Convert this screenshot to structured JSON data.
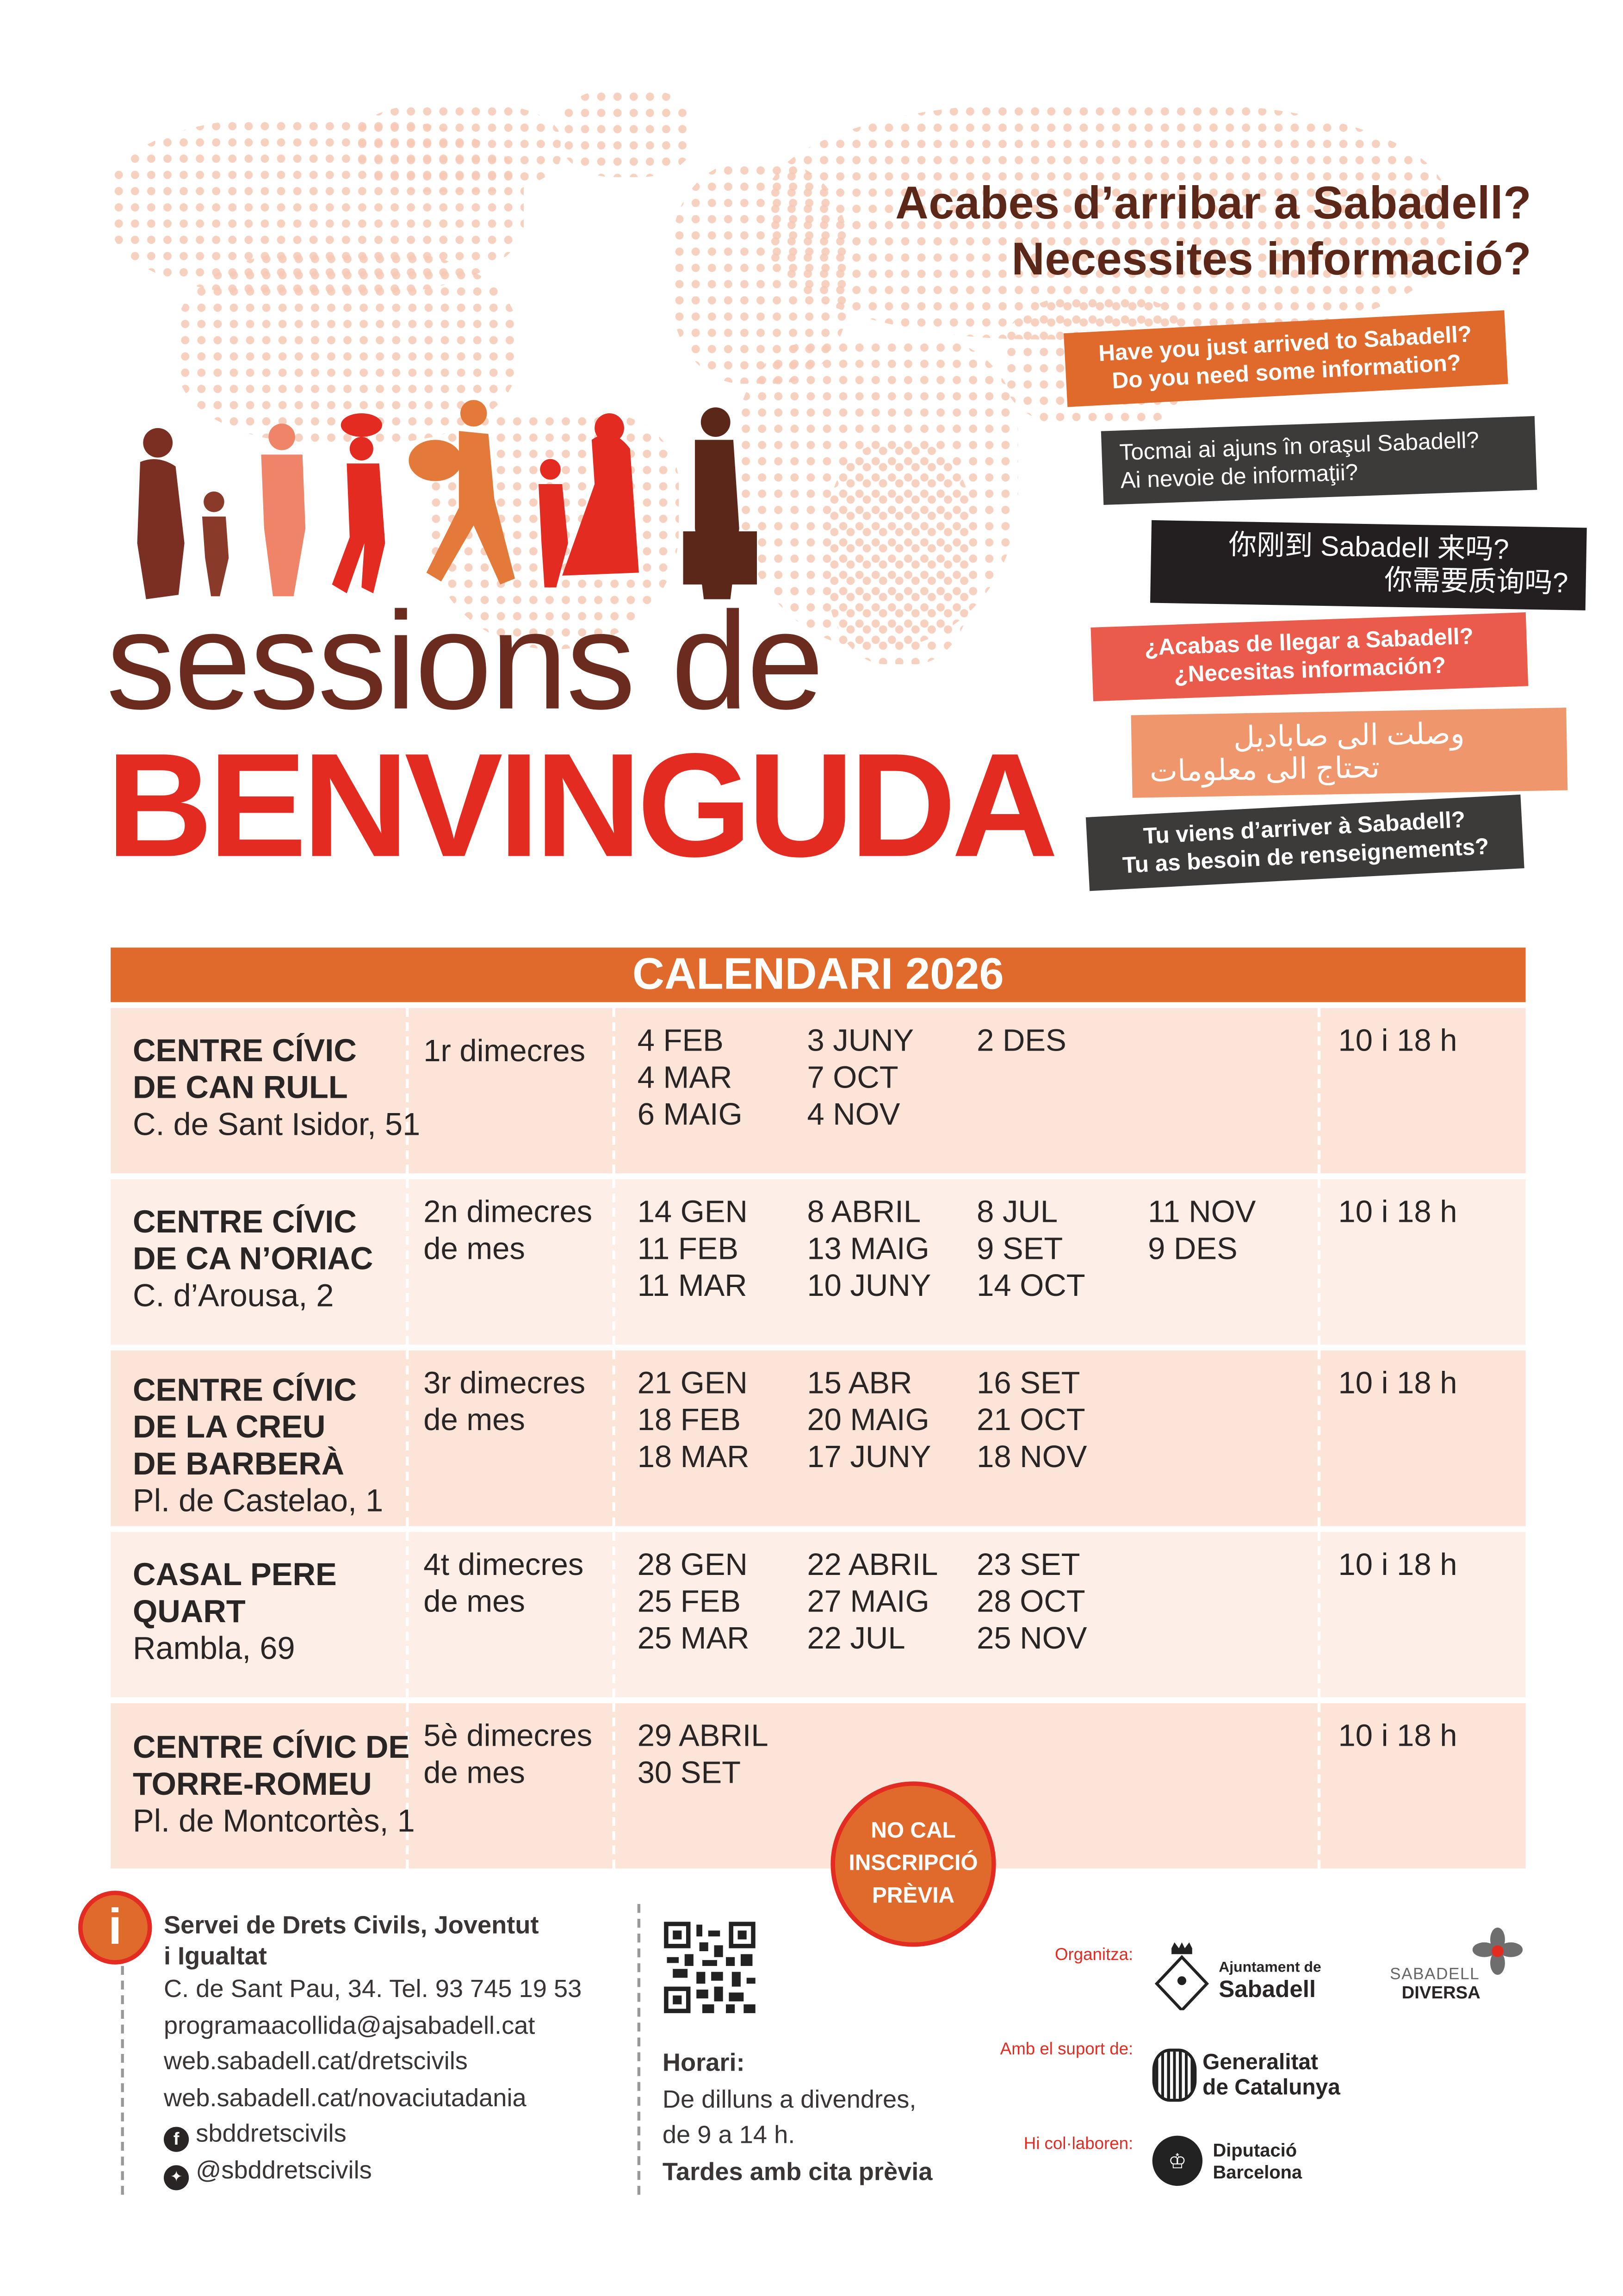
{
  "header": {
    "question_1": "Acabes d’arribar a Sabadell?",
    "question_2": "Necessites informació?",
    "translations": [
      {
        "lang": "en",
        "line1": "Have you just arrived to Sabadell?",
        "line2": "Do you need some information?",
        "color": "#e06a2c"
      },
      {
        "lang": "ro",
        "line1": "Tocmai ai ajuns în oraşul Sabadell?",
        "line2": "Ai nevoie de informaţii?",
        "color": "#3d3a3a"
      },
      {
        "lang": "zh",
        "line1": "你刚到 Sabadell 来吗?",
        "line2": "你需要质询吗?",
        "color": "#231f20"
      },
      {
        "lang": "es",
        "line1": "¿Acabas de llegar a Sabadell?",
        "line2": "¿Necesitas información?",
        "color": "#ea5b4b"
      },
      {
        "lang": "ar",
        "line1": "وصلت الى صاباديل",
        "line2": "تحتاج الى معلومات",
        "color": "#f0966c"
      },
      {
        "lang": "fr",
        "line1": "Tu viens d’arriver à Sabadell?",
        "line2": "Tu as besoin de renseignements?",
        "color": "#3d3a3a"
      }
    ],
    "title_line1": "sessions de",
    "title_line2": "BENVINGUDA"
  },
  "calendar": {
    "title": "CALENDARI 2026",
    "rows": [
      {
        "name": [
          "CENTRE CÍVIC",
          "DE CAN RULL"
        ],
        "address": "C. de Sant Isidor, 51",
        "frequency": [
          "1r dimecres"
        ],
        "dates": [
          [
            "4 FEB",
            "4 MAR",
            "6 MAIG"
          ],
          [
            "3 JUNY",
            "7 OCT",
            "4 NOV"
          ],
          [
            "2 DES"
          ]
        ],
        "time": "10 i 18 h"
      },
      {
        "name": [
          "CENTRE CÍVIC",
          "DE CA N’ORIAC"
        ],
        "address": "C. d’Arousa, 2",
        "frequency": [
          "2n dimecres",
          "de mes"
        ],
        "dates": [
          [
            "14 GEN",
            "11 FEB",
            "11 MAR"
          ],
          [
            "8 ABRIL",
            "13 MAIG",
            "10 JUNY"
          ],
          [
            "8 JUL",
            "9 SET",
            "14 OCT"
          ],
          [
            "11 NOV",
            "9 DES"
          ]
        ],
        "time": "10 i 18 h"
      },
      {
        "name": [
          "CENTRE CÍVIC",
          "DE LA CREU",
          "DE BARBERÀ"
        ],
        "address": "Pl. de Castelao, 1",
        "frequency": [
          "3r dimecres",
          "de mes"
        ],
        "dates": [
          [
            "21 GEN",
            "18 FEB",
            "18 MAR"
          ],
          [
            "15 ABR",
            "20 MAIG",
            "17 JUNY"
          ],
          [
            "16 SET",
            "21 OCT",
            "18 NOV"
          ]
        ],
        "time": "10 i 18 h"
      },
      {
        "name": [
          "CASAL PERE",
          "QUART"
        ],
        "address": "Rambla, 69",
        "frequency": [
          "4t dimecres",
          "de mes"
        ],
        "dates": [
          [
            "28 GEN",
            "25 FEB",
            "25 MAR"
          ],
          [
            "22 ABRIL",
            "27 MAIG",
            "22 JUL"
          ],
          [
            "23 SET",
            "28 OCT",
            "25 NOV"
          ]
        ],
        "time": "10 i 18 h"
      },
      {
        "name": [
          "CENTRE CÍVIC DE",
          "TORRE-ROMEU"
        ],
        "address": "Pl. de Montcortès, 1",
        "frequency": [
          "5è dimecres",
          "de mes"
        ],
        "dates": [
          [
            "29 ABRIL",
            "30 SET"
          ]
        ],
        "time": "10 i 18 h"
      }
    ],
    "badge": [
      "NO CAL",
      "INSCRIPCIÓ",
      "PRÈVIA"
    ]
  },
  "footer": {
    "service": [
      "Servei de Drets Civils, Joventut",
      "i Igualtat"
    ],
    "address": "C. de Sant Pau, 34. Tel. 93 745 19 53",
    "email": "programaacollida@ajsabadell.cat",
    "web1": "web.sabadell.cat/dretscivils",
    "web2": "web.sabadell.cat/novaciutadania",
    "facebook": "sbddretscivils",
    "twitter": "@sbddretscivils",
    "schedule_title": "Horari:",
    "schedule_line1": "De dilluns a divendres,",
    "schedule_line2": "de 9 a 14 h.",
    "schedule_line3": "Tardes amb cita prèvia",
    "organizer_label": "Organitza:",
    "organizer_1": [
      "Ajuntament de",
      "Sabadell"
    ],
    "organizer_2": [
      "SABADELL",
      "DIVERSA"
    ],
    "support_label": "Amb el suport de:",
    "support": [
      "Generalitat",
      "de Catalunya"
    ],
    "collab_label": "Hi col·laboren:",
    "collab": [
      "Diputació",
      "Barcelona"
    ]
  },
  "colors": {
    "orange": "#e06a2c",
    "red": "#e32b22",
    "brown": "#5b2718",
    "row_a": "#fde4d9",
    "row_b": "#fdeee7"
  }
}
